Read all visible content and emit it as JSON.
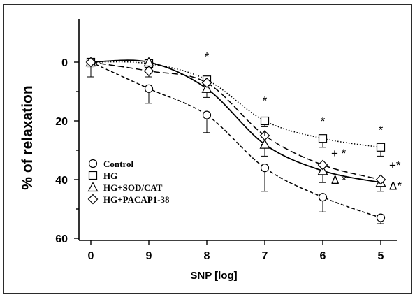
{
  "chart_data": {
    "type": "line",
    "title": "",
    "xlabel": "SNP [log]",
    "ylabel": "% of relaxation",
    "x": [
      "0",
      "9",
      "8",
      "7",
      "6",
      "5"
    ],
    "ylim": [
      0,
      60
    ],
    "y_inverted": true,
    "yticks": [
      "0",
      "20",
      "40",
      "60"
    ],
    "grid": false,
    "legend_position": "bottom-left",
    "series": [
      {
        "name": "Control",
        "marker": "circle",
        "line_style": "short-dash",
        "values": [
          0,
          9,
          18,
          36,
          46,
          53
        ],
        "errors": [
          5,
          5,
          6,
          8,
          5,
          2
        ]
      },
      {
        "name": "HG",
        "marker": "square",
        "line_style": "dotted",
        "values": [
          0,
          0.5,
          6,
          20,
          26,
          29
        ],
        "errors": [
          1,
          1,
          2,
          2,
          3,
          3
        ]
      },
      {
        "name": "HG+SOD/CAT",
        "marker": "triangle",
        "line_style": "solid",
        "values": [
          0,
          0,
          9,
          28,
          37,
          41
        ],
        "errors": [
          2,
          2,
          3,
          4,
          4,
          3
        ]
      },
      {
        "name": "HG+PACAP1-38",
        "marker": "diamond",
        "line_style": "long-dash",
        "values": [
          0,
          3,
          7,
          25,
          35,
          40
        ],
        "errors": [
          1,
          2,
          3,
          3,
          3,
          2
        ]
      }
    ],
    "annotations": [
      {
        "text": "*",
        "x": "8",
        "y": -2
      },
      {
        "text": "*",
        "x": "7",
        "y": 13
      },
      {
        "text": "+",
        "x": "7",
        "y": 24
      },
      {
        "text": "*",
        "x": "6",
        "y": 20
      },
      {
        "text": "+ *",
        "x": "6",
        "y": 31
      },
      {
        "text": "Δ *",
        "x": "6",
        "y": 40
      },
      {
        "text": "*",
        "x": "5",
        "y": 23
      },
      {
        "text": "+*",
        "x": "5",
        "y": 35
      },
      {
        "text": "Δ*",
        "x": "5",
        "y": 42
      }
    ]
  }
}
